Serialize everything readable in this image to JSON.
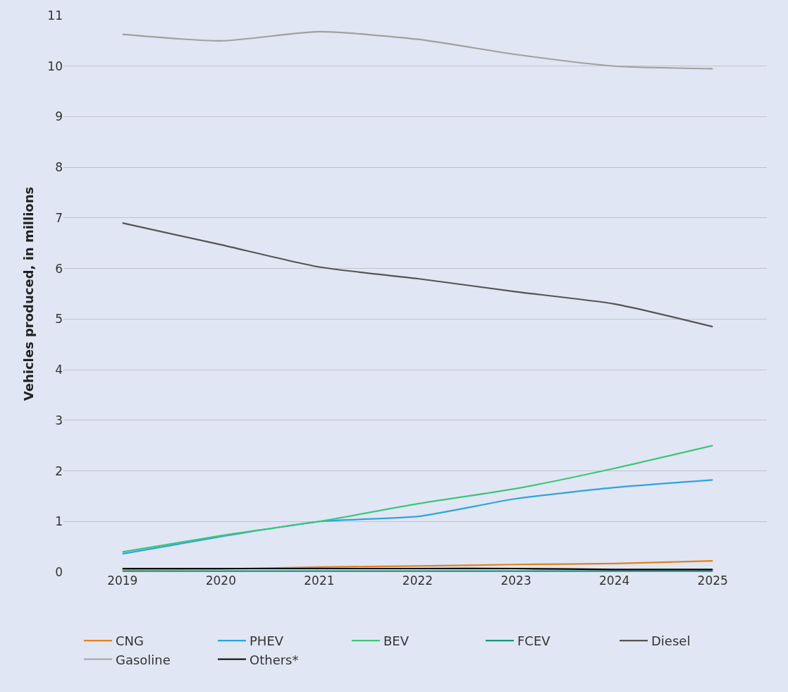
{
  "chart_data": {
    "type": "line",
    "ylabel": "Vehicles produced, in millions",
    "categories": [
      "2019",
      "2020",
      "2021",
      "2022",
      "2023",
      "2024",
      "2025"
    ],
    "ylim": [
      0,
      11
    ],
    "yticks": [
      0,
      1,
      2,
      3,
      4,
      5,
      6,
      7,
      8,
      9,
      10,
      11
    ],
    "grid": "y",
    "legend": "bottom",
    "marker": "none",
    "line_style": "solid",
    "series": [
      {
        "name": "CNG",
        "color": "#e0821e",
        "values": [
          0.05,
          0.06,
          0.1,
          0.12,
          0.15,
          0.17,
          0.22
        ]
      },
      {
        "name": "PHEV",
        "color": "#2ea3e0",
        "values": [
          0.36,
          0.7,
          1.0,
          1.1,
          1.45,
          1.67,
          1.82
        ]
      },
      {
        "name": "BEV",
        "color": "#3cc77a",
        "values": [
          0.4,
          0.72,
          1.0,
          1.35,
          1.65,
          2.05,
          2.5
        ]
      },
      {
        "name": "FCEV",
        "color": "#1f8f7a",
        "values": [
          0.02,
          0.02,
          0.02,
          0.02,
          0.02,
          0.02,
          0.02
        ]
      },
      {
        "name": "Diesel",
        "color": "#555555",
        "values": [
          6.9,
          6.47,
          6.03,
          5.8,
          5.54,
          5.3,
          4.85
        ]
      },
      {
        "name": "Gasoline",
        "color": "#a0a0a0",
        "values": [
          10.63,
          10.5,
          10.68,
          10.53,
          10.23,
          10.0,
          9.95
        ]
      },
      {
        "name": "Others*",
        "color": "#000000",
        "values": [
          0.07,
          0.07,
          0.07,
          0.07,
          0.07,
          0.05,
          0.05
        ]
      }
    ]
  }
}
